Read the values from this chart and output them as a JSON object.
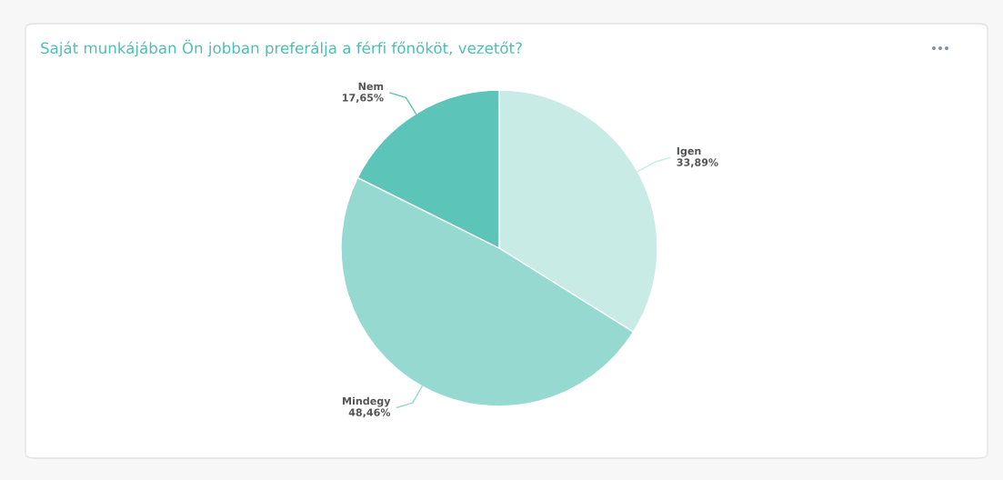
{
  "chart_data": {
    "type": "pie",
    "title": "Saját munkájában Ön jobban preferálja a férfi főnököt, vezetőt?",
    "categories": [
      "Igen",
      "Mindegy",
      "Nem"
    ],
    "values": [
      33.89,
      48.46,
      17.65
    ],
    "value_labels": [
      "33,89%",
      "48,46%",
      "17,65%"
    ],
    "colors": [
      "#c8ebe6",
      "#95d9d1",
      "#5cc4b9"
    ],
    "legend": false
  }
}
